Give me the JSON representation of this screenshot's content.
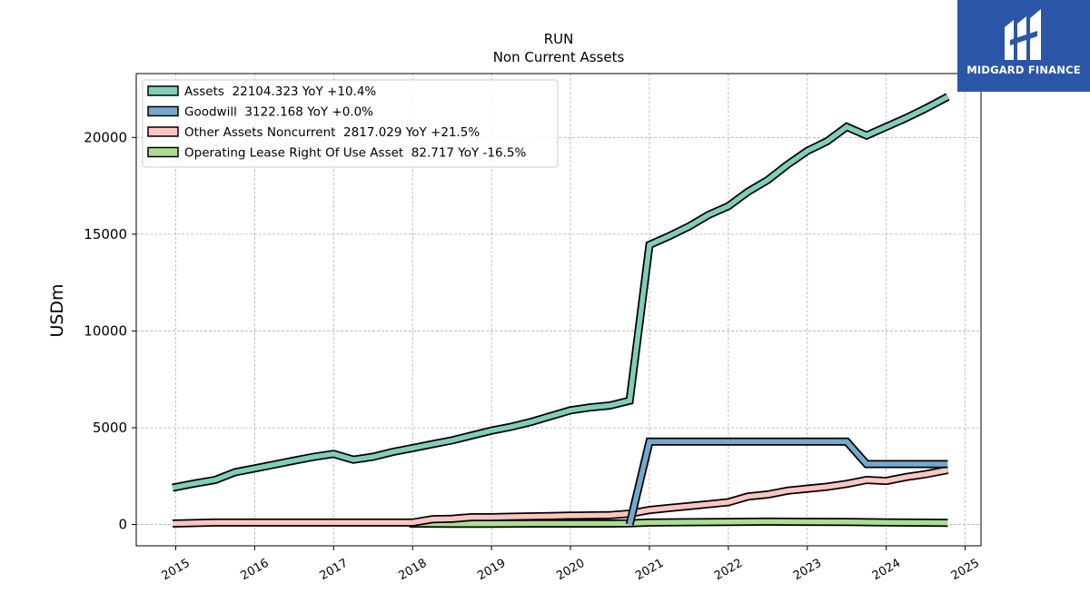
{
  "chart_data": {
    "type": "line",
    "title": "RUN",
    "subtitle": "Non Current  Assets",
    "ylabel": "USDm",
    "xlabel": "",
    "xlim": [
      2014.5,
      2025.2
    ],
    "ylim": [
      -1100,
      23300
    ],
    "x_ticks": [
      "2015",
      "2016",
      "2017",
      "2018",
      "2019",
      "2020",
      "2021",
      "2022",
      "2023",
      "2024",
      "2025"
    ],
    "y_ticks": [
      0,
      5000,
      10000,
      15000,
      20000
    ],
    "y_tick_labels": [
      "0",
      "5000",
      "10000",
      "15000",
      "20000"
    ],
    "grid": true,
    "legend_position": "top-left",
    "series": [
      {
        "name": "Assets",
        "legend_label": "Assets  22104.323 YoY +10.4%",
        "color": "#7fcdbb",
        "x": [
          2014.96,
          2015.21,
          2015.5,
          2015.75,
          2016.0,
          2016.25,
          2016.5,
          2016.75,
          2017.0,
          2017.25,
          2017.5,
          2017.75,
          2018.0,
          2018.25,
          2018.5,
          2018.75,
          2019.0,
          2019.25,
          2019.5,
          2019.75,
          2020.0,
          2020.25,
          2020.5,
          2020.75,
          2021.0,
          2021.25,
          2021.5,
          2021.75,
          2022.0,
          2022.25,
          2022.5,
          2022.75,
          2023.0,
          2023.25,
          2023.5,
          2023.75,
          2024.0,
          2024.25,
          2024.5,
          2024.78
        ],
        "values": [
          1900,
          2100,
          2300,
          2700,
          2900,
          3100,
          3300,
          3500,
          3650,
          3350,
          3500,
          3750,
          3950,
          4150,
          4350,
          4600,
          4850,
          5050,
          5300,
          5600,
          5900,
          6050,
          6150,
          6400,
          14450,
          14900,
          15400,
          16000,
          16450,
          17200,
          17800,
          18600,
          19300,
          19800,
          20550,
          20100,
          20550,
          21000,
          21500,
          22104
        ]
      },
      {
        "name": "Goodwill",
        "legend_label": "Goodwill  3122.168 YoY +0.0%",
        "color": "#74a9cf",
        "x": [
          2020.75,
          2021.0,
          2021.25,
          2021.5,
          2021.75,
          2022.0,
          2022.25,
          2022.5,
          2022.75,
          2023.0,
          2023.25,
          2023.5,
          2023.75,
          2024.0,
          2024.25,
          2024.5,
          2024.78
        ],
        "values": [
          0,
          4280,
          4280,
          4280,
          4280,
          4280,
          4280,
          4280,
          4280,
          4280,
          4280,
          4280,
          3122,
          3122,
          3122,
          3122,
          3122
        ]
      },
      {
        "name": "Other Assets Noncurrent",
        "legend_label": "Other Assets Noncurrent  2817.029 YoY +21.5%",
        "color": "#fcc5c0",
        "x": [
          2014.96,
          2015.5,
          2016.0,
          2016.5,
          2017.0,
          2017.5,
          2018.0,
          2018.25,
          2018.5,
          2018.75,
          2019.0,
          2019.25,
          2019.5,
          2019.75,
          2020.0,
          2020.25,
          2020.5,
          2020.75,
          2021.0,
          2021.25,
          2021.5,
          2021.75,
          2022.0,
          2022.25,
          2022.5,
          2022.75,
          2023.0,
          2023.25,
          2023.5,
          2023.75,
          2024.0,
          2024.25,
          2024.5,
          2024.78
        ],
        "values": [
          50,
          100,
          100,
          100,
          100,
          100,
          100,
          270,
          300,
          380,
          380,
          400,
          420,
          440,
          460,
          470,
          480,
          560,
          750,
          850,
          950,
          1050,
          1150,
          1450,
          1550,
          1750,
          1850,
          1950,
          2100,
          2300,
          2250,
          2450,
          2600,
          2817
        ]
      },
      {
        "name": "Operating Lease Right Of Use Asset",
        "legend_label": "Operating Lease Right Of Use Asset  82.717 YoY -16.5%",
        "color": "#addd8e",
        "x": [
          2017.96,
          2018.5,
          2019.0,
          2019.5,
          2020.0,
          2020.5,
          2020.75,
          2021.0,
          2021.5,
          2022.0,
          2022.5,
          2023.0,
          2023.5,
          2024.0,
          2024.5,
          2024.78
        ],
        "values": [
          50,
          40,
          40,
          50,
          50,
          50,
          60,
          100,
          120,
          130,
          150,
          140,
          130,
          110,
          95,
          83
        ]
      }
    ]
  },
  "logo": {
    "text": "MIDGARD FINANCE",
    "color": "#2b56a8"
  }
}
